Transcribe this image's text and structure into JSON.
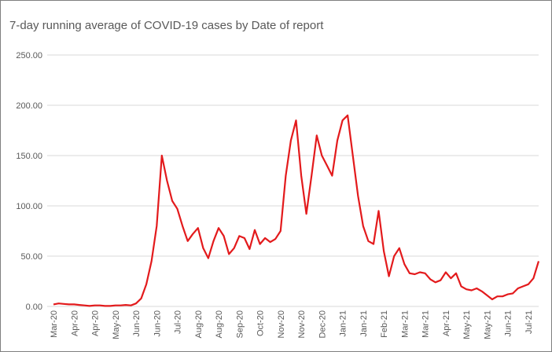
{
  "chart_data": {
    "type": "line",
    "title": "7-day running average of COVID-19 cases by Date of report",
    "categories": [
      "Mar-20",
      null,
      null,
      null,
      "Apr-20",
      null,
      null,
      null,
      "Apr-20",
      null,
      null,
      null,
      "May-20",
      null,
      null,
      null,
      "Jun-20",
      null,
      null,
      null,
      "Jun-20",
      null,
      null,
      null,
      "Jul-20",
      null,
      null,
      null,
      "Aug-20",
      null,
      null,
      null,
      "Aug-20",
      null,
      null,
      null,
      "Sep-20",
      null,
      null,
      null,
      "Oct-20",
      null,
      null,
      null,
      "Nov-20",
      null,
      null,
      null,
      "Nov-20",
      null,
      null,
      null,
      "Dec-20",
      null,
      null,
      null,
      "Jan-21",
      null,
      null,
      null,
      "Jan-21",
      null,
      null,
      null,
      "Feb-21",
      null,
      null,
      null,
      "Mar-21",
      null,
      null,
      null,
      "Mar-21",
      null,
      null,
      null,
      "Apr-21",
      null,
      null,
      null,
      "May-21",
      null,
      null,
      null,
      "May-21",
      null,
      null,
      null,
      "Jun-21",
      null,
      null,
      null,
      "Jul-21",
      null,
      null
    ],
    "series": [
      {
        "name": "7-day running average",
        "color": "#e31a1c",
        "values": [
          2,
          3,
          2.5,
          2,
          2,
          1.5,
          1,
          0.5,
          1,
          1,
          0.5,
          0.5,
          1,
          1,
          1.5,
          1,
          3,
          8,
          22,
          45,
          80,
          150,
          125,
          105,
          97,
          80,
          65,
          72,
          78,
          58,
          48,
          65,
          78,
          70,
          52,
          58,
          70,
          68,
          57,
          76,
          62,
          68,
          64,
          67,
          75,
          130,
          165,
          185,
          130,
          92,
          130,
          170,
          150,
          140,
          130,
          165,
          185,
          190,
          150,
          110,
          80,
          65,
          62,
          95,
          55,
          30,
          50,
          58,
          42,
          33,
          32,
          34,
          33,
          27,
          24,
          26,
          34,
          28,
          33,
          20,
          17,
          16,
          18,
          15,
          11,
          7,
          10,
          10,
          12,
          13,
          18,
          20,
          22,
          28,
          45
        ]
      }
    ],
    "ylim": [
      0,
      250
    ],
    "yticks": [
      {
        "value": 0,
        "label": "0.00"
      },
      {
        "value": 50,
        "label": "50.00"
      },
      {
        "value": 100,
        "label": "100.00"
      },
      {
        "value": 150,
        "label": "150.00"
      },
      {
        "value": 200,
        "label": "200.00"
      },
      {
        "value": 250,
        "label": "250.00"
      }
    ],
    "grid": true
  }
}
